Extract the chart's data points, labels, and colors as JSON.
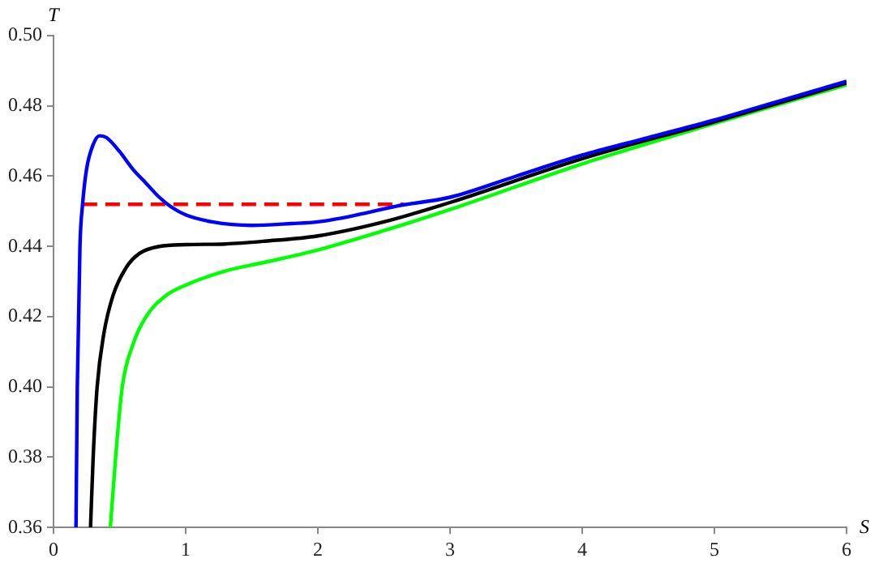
{
  "chart_data": {
    "type": "line",
    "xlabel": "S",
    "ylabel": "T",
    "xlim": [
      0,
      6
    ],
    "ylim": [
      0.36,
      0.5
    ],
    "xticks": [
      0,
      1,
      2,
      3,
      4,
      5,
      6
    ],
    "yticks": [
      0.36,
      0.38,
      {
        "value": 0.4,
        "label": "0.40"
      },
      0.42,
      0.44,
      0.46,
      0.48,
      {
        "value": 0.5,
        "label": "0.50"
      }
    ],
    "grid": false,
    "legend": false,
    "marker": "none",
    "series": [
      {
        "color": "#0000ff",
        "x": [
          0.17,
          0.18,
          0.2,
          0.22,
          0.25,
          0.3,
          0.35,
          0.4,
          0.5,
          0.6,
          0.7,
          0.8,
          0.9,
          1.0,
          1.2,
          1.5,
          1.8,
          2.0,
          2.3,
          2.6,
          3.0,
          3.5,
          4,
          4.5,
          5,
          5.5,
          6
        ],
        "values": [
          0.36,
          0.4,
          0.44,
          0.452,
          0.462,
          0.469,
          0.4715,
          0.471,
          0.467,
          0.462,
          0.458,
          0.454,
          0.451,
          0.449,
          0.447,
          0.446,
          0.4465,
          0.447,
          0.449,
          0.4515,
          0.454,
          0.46,
          0.466,
          0.471,
          0.476,
          0.4815,
          0.487
        ]
      },
      {
        "color": "#000000",
        "x": [
          0.28,
          0.3,
          0.33,
          0.38,
          0.45,
          0.55,
          0.65,
          0.8,
          1.0,
          1.3,
          1.6,
          2.0,
          2.5,
          3.0,
          4,
          5,
          6
        ],
        "values": [
          0.36,
          0.38,
          0.4,
          0.415,
          0.426,
          0.434,
          0.438,
          0.44,
          0.4405,
          0.4407,
          0.4415,
          0.443,
          0.447,
          0.4525,
          0.465,
          0.4755,
          0.4865
        ]
      },
      {
        "color": "#00ff00",
        "x": [
          0.43,
          0.47,
          0.52,
          0.6,
          0.7,
          0.85,
          1.0,
          1.3,
          1.6,
          2.0,
          2.5,
          3,
          4,
          5,
          6
        ],
        "values": [
          0.36,
          0.38,
          0.4,
          0.412,
          0.42,
          0.426,
          0.429,
          0.433,
          0.4355,
          0.439,
          0.4445,
          0.4505,
          0.4635,
          0.475,
          0.486
        ]
      },
      {
        "color": "#ff0000",
        "line_style": "dashed",
        "x": [
          0.22,
          2.65
        ],
        "values": [
          0.452,
          0.452
        ]
      }
    ]
  }
}
